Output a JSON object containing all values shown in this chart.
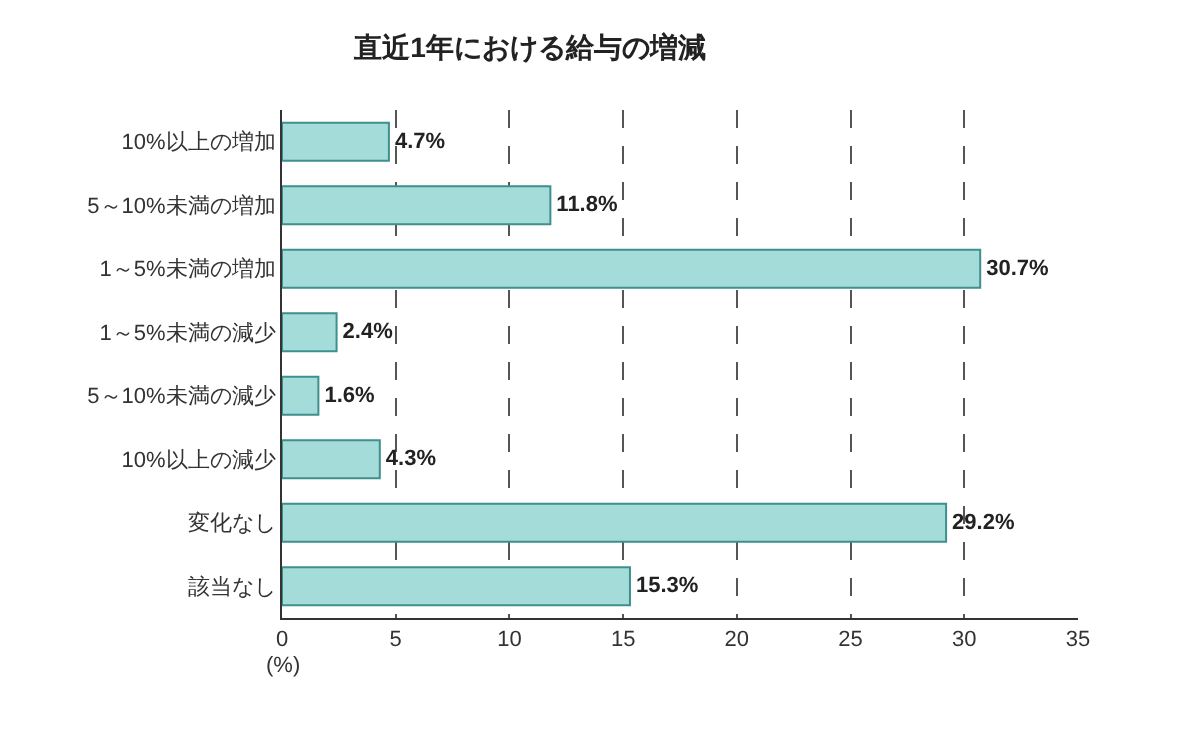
{
  "chart_data": {
    "type": "bar",
    "orientation": "horizontal",
    "title": "直近1年における給与の増減",
    "categories": [
      "10%以上の増加",
      "5～10%未満の増加",
      "1～5%未満の増加",
      "1～5%未満の減少",
      "5～10%未満の減少",
      "10%以上の減少",
      "変化なし",
      "該当なし"
    ],
    "values": [
      4.7,
      11.8,
      30.7,
      2.4,
      1.6,
      4.3,
      29.2,
      15.3
    ],
    "value_labels": [
      "4.7%",
      "11.8%",
      "30.7%",
      "2.4%",
      "1.6%",
      "4.3%",
      "29.2%",
      "15.3%"
    ],
    "color": "#a3dcd9",
    "xlabel": "(%)",
    "xlim": [
      0,
      35
    ],
    "xticks": [
      0,
      5,
      10,
      15,
      20,
      25,
      30,
      35
    ],
    "grid": "x",
    "legend": false
  }
}
